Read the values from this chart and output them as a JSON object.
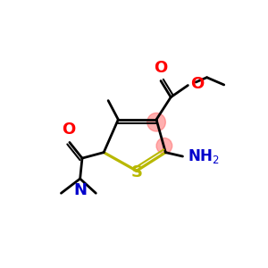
{
  "bg_color": "#ffffff",
  "ring_color": "#000000",
  "S_color": "#b8b800",
  "O_color": "#ff0000",
  "N_color": "#0000cc",
  "highlight_color": "#ff6060",
  "highlight_alpha": 0.5,
  "bond_lw": 2.0,
  "figsize": [
    3.0,
    3.0
  ],
  "dpi": 100,
  "xlim": [
    0,
    10
  ],
  "ylim": [
    0,
    10
  ]
}
